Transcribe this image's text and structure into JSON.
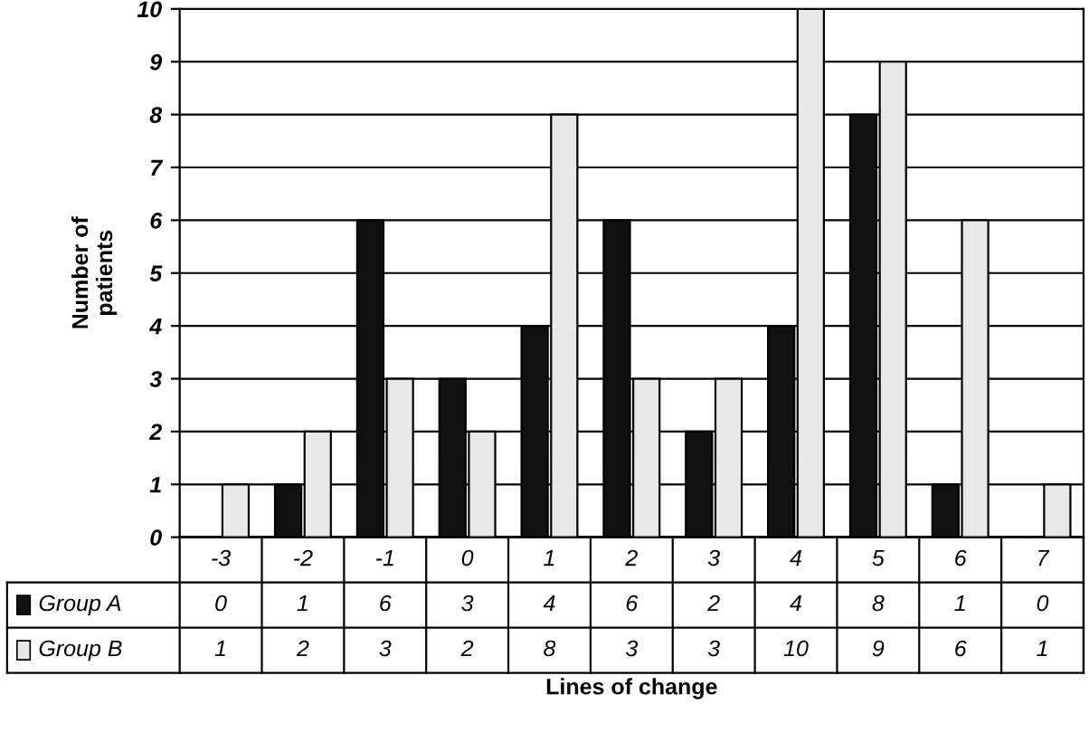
{
  "chart_data": {
    "type": "bar",
    "xlabel": "Lines of change",
    "ylabel": "Number of\npatients",
    "categories": [
      "-3",
      "-2",
      "-1",
      "0",
      "1",
      "2",
      "3",
      "4",
      "5",
      "6",
      "7"
    ],
    "series": [
      {
        "name": "Group A",
        "color": "#111111",
        "values": [
          0,
          1,
          6,
          3,
          4,
          6,
          2,
          4,
          8,
          1,
          0
        ]
      },
      {
        "name": "Group B",
        "color": "#e8e8e8",
        "values": [
          1,
          2,
          3,
          2,
          8,
          3,
          3,
          10,
          9,
          6,
          1
        ]
      }
    ],
    "ylim": [
      0,
      10
    ],
    "yticks": [
      0,
      1,
      2,
      3,
      4,
      5,
      6,
      7,
      8,
      9,
      10
    ],
    "grid": "y",
    "data_labels": true,
    "legend": "bottom left"
  }
}
